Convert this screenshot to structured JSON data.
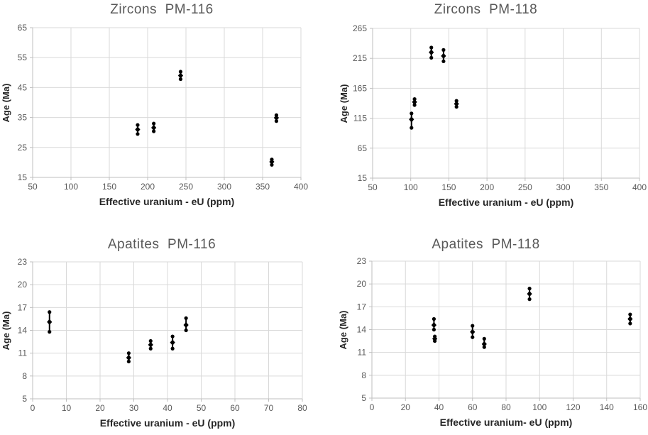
{
  "page": {
    "background": "#ffffff"
  },
  "colors": {
    "marker": "#000000",
    "gridline": "#d9d9d9",
    "axis_line": "#bfbfbf",
    "tick_label": "#595959",
    "title": "#595959",
    "axis_label": "#262626"
  },
  "chart_data": [
    {
      "id": "zircons-pm116",
      "type": "scatter",
      "title": "Zircons  PM-116",
      "xlabel": "Effective uranium - eU (ppm)",
      "ylabel": "Age (Ma)",
      "xlim": [
        50,
        400
      ],
      "ylim": [
        15,
        65
      ],
      "xticks": [
        50,
        100,
        150,
        200,
        250,
        300,
        350,
        400
      ],
      "yticks": [
        15,
        25,
        35,
        45,
        55,
        65
      ],
      "grid": true,
      "legend": "none",
      "marker_style": "diamond-with-error-bar-dots",
      "clusters": [
        {
          "x": 187,
          "y_top": 32.5,
          "y_mid": 31.0,
          "y_bottom": 29.5
        },
        {
          "x": 208,
          "y_top": 33.0,
          "y_mid": 31.6,
          "y_bottom": 30.4
        },
        {
          "x": 243,
          "y_top": 50.3,
          "y_mid": 49.0,
          "y_bottom": 47.8
        },
        {
          "x": 362,
          "y_top": 21.0,
          "y_mid": 20.2,
          "y_bottom": 19.2
        },
        {
          "x": 368,
          "y_top": 35.8,
          "y_mid": 34.9,
          "y_bottom": 33.8
        }
      ]
    },
    {
      "id": "zircons-pm118",
      "type": "scatter",
      "title": "Zircons  PM-118",
      "xlabel": "Effective uranium - eU (ppm)",
      "ylabel": "Age (Ma)",
      "xlim": [
        50,
        400
      ],
      "ylim": [
        15,
        265
      ],
      "xticks": [
        50,
        100,
        150,
        200,
        250,
        300,
        350,
        400
      ],
      "yticks": [
        15,
        65,
        115,
        165,
        215,
        265
      ],
      "grid": true,
      "legend": "none",
      "marker_style": "diamond-with-error-bar-dots",
      "clusters": [
        {
          "x": 101,
          "y_top": 123,
          "y_mid": 113,
          "y_bottom": 99
        },
        {
          "x": 105,
          "y_top": 147,
          "y_mid": 142,
          "y_bottom": 137
        },
        {
          "x": 127,
          "y_top": 233,
          "y_mid": 225,
          "y_bottom": 216
        },
        {
          "x": 143,
          "y_top": 229,
          "y_mid": 219,
          "y_bottom": 210
        },
        {
          "x": 160,
          "y_top": 144,
          "y_mid": 139,
          "y_bottom": 134
        }
      ]
    },
    {
      "id": "apatites-pm116",
      "type": "scatter",
      "title": "Apatites  PM-116",
      "xlabel": "Effective uranium - eU (ppm)",
      "ylabel": "Age (Ma)",
      "xlim": [
        0,
        80
      ],
      "ylim": [
        5,
        23
      ],
      "xticks": [
        0,
        10,
        20,
        30,
        40,
        50,
        60,
        70,
        80
      ],
      "yticks": [
        5,
        8,
        11,
        14,
        17,
        20,
        23
      ],
      "grid": true,
      "legend": "none",
      "marker_style": "diamond-with-error-bar-dots",
      "clusters": [
        {
          "x": 5,
          "y_top": 16.4,
          "y_mid": 15.1,
          "y_bottom": 13.8
        },
        {
          "x": 28.5,
          "y_top": 11.0,
          "y_mid": 10.4,
          "y_bottom": 9.9
        },
        {
          "x": 35,
          "y_top": 12.6,
          "y_mid": 12.1,
          "y_bottom": 11.6
        },
        {
          "x": 41.5,
          "y_top": 13.2,
          "y_mid": 12.4,
          "y_bottom": 11.6
        },
        {
          "x": 45.5,
          "y_top": 15.6,
          "y_mid": 14.7,
          "y_bottom": 14.0
        }
      ]
    },
    {
      "id": "apatites-pm118",
      "type": "scatter",
      "title": "Apatites  PM-118",
      "xlabel": "Effective uranium- eU (ppm)",
      "ylabel": "Age (Ma)",
      "xlim": [
        0,
        160
      ],
      "ylim": [
        5,
        23
      ],
      "xticks": [
        0,
        20,
        40,
        60,
        80,
        100,
        120,
        140,
        160
      ],
      "yticks": [
        5,
        8,
        11,
        14,
        17,
        20,
        23
      ],
      "grid": true,
      "legend": "none",
      "marker_style": "diamond-with-error-bar-dots",
      "clusters": [
        {
          "x": 37,
          "y_top": 15.4,
          "y_mid": 14.6,
          "y_bottom": 14.0
        },
        {
          "x": 37.5,
          "y_top": 13.1,
          "y_mid": 12.8,
          "y_bottom": 12.5
        },
        {
          "x": 60,
          "y_top": 14.5,
          "y_mid": 13.7,
          "y_bottom": 13.0
        },
        {
          "x": 67,
          "y_top": 12.8,
          "y_mid": 12.1,
          "y_bottom": 11.7
        },
        {
          "x": 94,
          "y_top": 19.4,
          "y_mid": 18.7,
          "y_bottom": 18.0
        },
        {
          "x": 154,
          "y_top": 16.0,
          "y_mid": 15.4,
          "y_bottom": 14.8
        }
      ]
    }
  ]
}
